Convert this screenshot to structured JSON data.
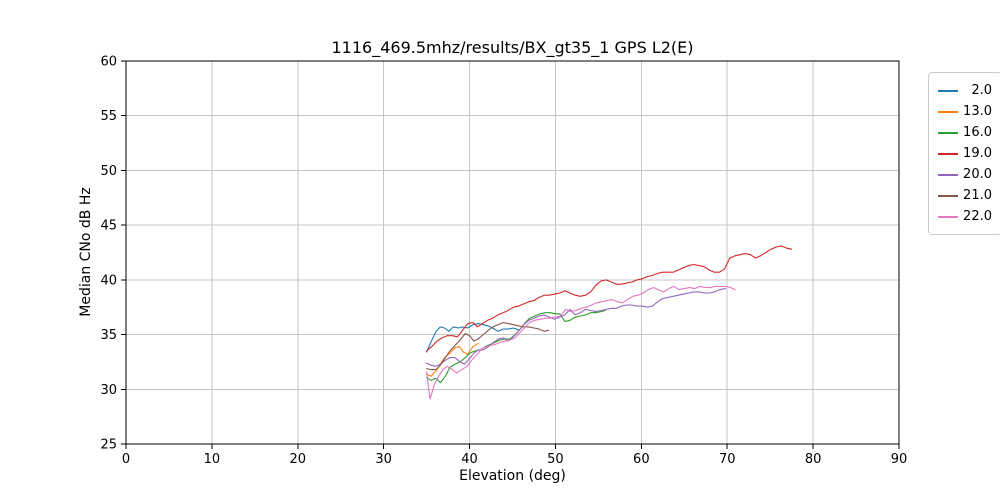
{
  "chart_data": {
    "type": "line",
    "title": "1116_469.5mhz/results/BX_gt35_1 GPS L2(E)",
    "xlabel": "Elevation (deg)",
    "ylabel": "Median CNo dB Hz",
    "xlim": [
      0,
      90
    ],
    "ylim": [
      25,
      60
    ],
    "xticks": [
      0,
      10,
      20,
      30,
      40,
      50,
      60,
      70,
      80,
      90
    ],
    "yticks": [
      25,
      30,
      35,
      40,
      45,
      50,
      55,
      60
    ],
    "grid": true,
    "grid_color": "#c6c6c6",
    "axis_color": "#000000",
    "legend_position": "outside-top-right",
    "series": [
      {
        "name": "2.0",
        "color": "#1f77b4",
        "points": [
          [
            35,
            33.4
          ],
          [
            35.5,
            34.3
          ],
          [
            36.1,
            35.3
          ],
          [
            36.6,
            35.7
          ],
          [
            37.1,
            35.6
          ],
          [
            37.6,
            35.3
          ],
          [
            38.1,
            35.7
          ],
          [
            38.7,
            35.6
          ],
          [
            39.2,
            35.7
          ],
          [
            39.8,
            35.6
          ],
          [
            40.4,
            35.9
          ],
          [
            41,
            36
          ],
          [
            41.6,
            35.9
          ],
          [
            42.1,
            35.8
          ],
          [
            42.7,
            35.6
          ],
          [
            43.3,
            35.3
          ],
          [
            43.9,
            35.5
          ],
          [
            44.5,
            35.5
          ],
          [
            45.1,
            35.6
          ],
          [
            45.8,
            35.4
          ]
        ]
      },
      {
        "name": "13.0",
        "color": "#ff7f0e",
        "points": [
          [
            35,
            31.4
          ],
          [
            35.5,
            31.2
          ],
          [
            36.1,
            31.7
          ],
          [
            36.6,
            32.3
          ],
          [
            37.1,
            32.9
          ],
          [
            37.7,
            33.3
          ],
          [
            38.3,
            33.8
          ],
          [
            38.8,
            33.9
          ],
          [
            39.3,
            33.4
          ],
          [
            39.8,
            33.2
          ],
          [
            40.4,
            33.9
          ],
          [
            41,
            34.2
          ]
        ]
      },
      {
        "name": "16.0",
        "color": "#2ca02c",
        "points": [
          [
            35,
            31.1
          ],
          [
            35.5,
            30.8
          ],
          [
            36.1,
            31
          ],
          [
            36.6,
            30.6
          ],
          [
            37.2,
            31.2
          ],
          [
            37.7,
            32
          ],
          [
            38.3,
            32.3
          ],
          [
            38.9,
            32.5
          ],
          [
            39.5,
            32.9
          ],
          [
            40,
            33.3
          ],
          [
            40.6,
            33.5
          ],
          [
            41.2,
            33.6
          ],
          [
            41.8,
            33.9
          ],
          [
            42.4,
            34.1
          ],
          [
            43,
            34.3
          ],
          [
            43.5,
            34.5
          ],
          [
            44.1,
            34.6
          ],
          [
            44.7,
            34.6
          ],
          [
            45.3,
            35
          ],
          [
            45.9,
            35.5
          ],
          [
            46.5,
            36.1
          ],
          [
            47,
            36.5
          ],
          [
            47.6,
            36.7
          ],
          [
            48.2,
            36.9
          ],
          [
            48.8,
            37
          ],
          [
            49.4,
            37
          ],
          [
            50,
            36.9
          ],
          [
            50.5,
            36.9
          ],
          [
            51.1,
            36.2
          ],
          [
            51.7,
            36.3
          ],
          [
            52.3,
            36.6
          ],
          [
            52.9,
            36.7
          ],
          [
            53.5,
            36.8
          ],
          [
            54.1,
            37
          ],
          [
            54.7,
            37
          ],
          [
            55.3,
            37.1
          ],
          [
            55.8,
            37.2
          ]
        ]
      },
      {
        "name": "19.0",
        "color": "#d62728",
        "points": [
          [
            35,
            33.5
          ],
          [
            35.6,
            33.9
          ],
          [
            36.2,
            34.4
          ],
          [
            36.8,
            34.7
          ],
          [
            37.4,
            34.9
          ],
          [
            38,
            34.9
          ],
          [
            38.6,
            34.8
          ],
          [
            39.2,
            35.4
          ],
          [
            39.8,
            36
          ],
          [
            40.4,
            36.1
          ],
          [
            40.9,
            35.7
          ],
          [
            41.5,
            36
          ],
          [
            42.1,
            36.3
          ],
          [
            42.7,
            36.5
          ],
          [
            43.3,
            36.8
          ],
          [
            43.9,
            37
          ],
          [
            44.5,
            37.2
          ],
          [
            45.1,
            37.5
          ],
          [
            45.7,
            37.6
          ],
          [
            46.3,
            37.8
          ],
          [
            46.9,
            38
          ],
          [
            47.5,
            38.1
          ],
          [
            48.1,
            38.4
          ],
          [
            48.7,
            38.6
          ],
          [
            49.3,
            38.6
          ],
          [
            49.9,
            38.7
          ],
          [
            50.5,
            38.8
          ],
          [
            51.1,
            39
          ],
          [
            51.7,
            38.8
          ],
          [
            52.3,
            38.6
          ],
          [
            52.9,
            38.5
          ],
          [
            53.5,
            38.6
          ],
          [
            54.1,
            38.9
          ],
          [
            54.7,
            39.5
          ],
          [
            55.3,
            39.9
          ],
          [
            55.9,
            40
          ],
          [
            56.5,
            39.8
          ],
          [
            57.1,
            39.6
          ],
          [
            57.7,
            39.6
          ],
          [
            58.3,
            39.7
          ],
          [
            58.9,
            39.8
          ],
          [
            59.5,
            40
          ],
          [
            60.1,
            40.1
          ],
          [
            60.7,
            40.3
          ],
          [
            61.3,
            40.4
          ],
          [
            61.9,
            40.6
          ],
          [
            62.5,
            40.7
          ],
          [
            63.1,
            40.7
          ],
          [
            63.7,
            40.7
          ],
          [
            64.3,
            40.9
          ],
          [
            64.9,
            41.1
          ],
          [
            65.5,
            41.3
          ],
          [
            66.1,
            41.4
          ],
          [
            66.7,
            41.3
          ],
          [
            67.3,
            41.2
          ],
          [
            67.9,
            40.9
          ],
          [
            68.5,
            40.7
          ],
          [
            69.1,
            40.7
          ],
          [
            69.7,
            41
          ],
          [
            70.3,
            42
          ],
          [
            70.9,
            42.2
          ],
          [
            71.5,
            42.3
          ],
          [
            72.1,
            42.4
          ],
          [
            72.7,
            42.3
          ],
          [
            73.3,
            42
          ],
          [
            73.9,
            42.2
          ],
          [
            74.5,
            42.5
          ],
          [
            75.1,
            42.8
          ],
          [
            75.7,
            43
          ],
          [
            76.3,
            43.1
          ],
          [
            76.9,
            42.9
          ],
          [
            77.5,
            42.8
          ]
        ]
      },
      {
        "name": "20.0",
        "color": "#9467bd",
        "points": [
          [
            35,
            32.4
          ],
          [
            35.5,
            32.2
          ],
          [
            36.1,
            32.1
          ],
          [
            36.6,
            32.3
          ],
          [
            37.1,
            32.6
          ],
          [
            37.7,
            32.9
          ],
          [
            38.3,
            32.9
          ],
          [
            38.9,
            32.5
          ],
          [
            39.4,
            32.3
          ],
          [
            40,
            32.8
          ],
          [
            40.5,
            33.3
          ],
          [
            41,
            33.6
          ],
          [
            41.6,
            33.6
          ],
          [
            42.2,
            33.9
          ],
          [
            42.8,
            34.3
          ],
          [
            43.4,
            34.6
          ],
          [
            43.9,
            34.7
          ],
          [
            44.5,
            34.4
          ],
          [
            45.1,
            34.8
          ],
          [
            45.7,
            35.3
          ],
          [
            46.3,
            35.9
          ],
          [
            46.9,
            36.3
          ],
          [
            47.5,
            36.5
          ],
          [
            48.1,
            36.7
          ],
          [
            48.7,
            36.8
          ],
          [
            49.3,
            36.6
          ],
          [
            49.9,
            36.4
          ],
          [
            50.5,
            36.6
          ],
          [
            51.1,
            36.8
          ],
          [
            51.7,
            37.3
          ],
          [
            52.3,
            36.8
          ],
          [
            52.9,
            37
          ],
          [
            53.5,
            37.3
          ],
          [
            54.1,
            37.2
          ],
          [
            54.7,
            37.1
          ],
          [
            55.3,
            37.2
          ],
          [
            55.9,
            37.3
          ],
          [
            56.5,
            37.4
          ],
          [
            57.1,
            37.4
          ],
          [
            57.7,
            37.6
          ],
          [
            58.3,
            37.7
          ],
          [
            58.9,
            37.7
          ],
          [
            59.5,
            37.6
          ],
          [
            60.1,
            37.6
          ],
          [
            60.7,
            37.5
          ],
          [
            61.3,
            37.6
          ],
          [
            61.9,
            38
          ],
          [
            62.5,
            38.3
          ],
          [
            63.1,
            38.4
          ],
          [
            63.7,
            38.5
          ],
          [
            64.3,
            38.6
          ],
          [
            64.9,
            38.7
          ],
          [
            65.5,
            38.8
          ],
          [
            66.1,
            38.9
          ],
          [
            66.7,
            38.9
          ],
          [
            67.3,
            38.8
          ],
          [
            67.9,
            38.8
          ],
          [
            68.5,
            38.9
          ],
          [
            69.1,
            39.1
          ],
          [
            69.8,
            39.2
          ]
        ]
      },
      {
        "name": "21.0",
        "color": "#8c564b",
        "points": [
          [
            35,
            31.9
          ],
          [
            35.5,
            31.8
          ],
          [
            36.1,
            31.8
          ],
          [
            36.6,
            32.2
          ],
          [
            37.2,
            32.9
          ],
          [
            37.7,
            33.5
          ],
          [
            38.3,
            34
          ],
          [
            38.9,
            34.5
          ],
          [
            39.5,
            35.1
          ],
          [
            40,
            34.9
          ],
          [
            40.5,
            34.4
          ],
          [
            41,
            34.6
          ],
          [
            41.6,
            35
          ],
          [
            42.2,
            35.4
          ],
          [
            42.7,
            35.7
          ],
          [
            43.3,
            35.9
          ],
          [
            43.9,
            36.1
          ],
          [
            44.5,
            36
          ],
          [
            45.1,
            35.9
          ],
          [
            45.7,
            35.8
          ],
          [
            46.3,
            35.7
          ],
          [
            46.9,
            35.7
          ],
          [
            47.5,
            35.6
          ],
          [
            48.1,
            35.5
          ],
          [
            48.7,
            35.3
          ],
          [
            49.2,
            35.4
          ]
        ]
      },
      {
        "name": "22.0",
        "color": "#e377c2",
        "points": [
          [
            35,
            31.6
          ],
          [
            35.4,
            29.1
          ],
          [
            35.9,
            30.4
          ],
          [
            36.4,
            31.2
          ],
          [
            36.9,
            31.8
          ],
          [
            37.4,
            32.1
          ],
          [
            38,
            31.8
          ],
          [
            38.5,
            31.5
          ],
          [
            39.1,
            31.8
          ],
          [
            39.7,
            32.1
          ],
          [
            40.3,
            32.7
          ],
          [
            40.9,
            33.2
          ],
          [
            41.4,
            33.7
          ],
          [
            41.9,
            33.9
          ],
          [
            42.4,
            34
          ],
          [
            43,
            34.1
          ],
          [
            43.6,
            34.3
          ],
          [
            44.1,
            34.4
          ],
          [
            44.7,
            34.5
          ],
          [
            45.3,
            34.7
          ],
          [
            45.9,
            35.2
          ],
          [
            46.5,
            35.7
          ],
          [
            47,
            36.1
          ],
          [
            47.6,
            36.3
          ],
          [
            48.2,
            36.4
          ],
          [
            48.8,
            36.5
          ],
          [
            49.4,
            36.5
          ],
          [
            50,
            36.6
          ],
          [
            50.6,
            36.7
          ],
          [
            51.2,
            37.3
          ],
          [
            51.8,
            37.1
          ],
          [
            52.4,
            37.2
          ],
          [
            53,
            37.4
          ],
          [
            53.6,
            37.5
          ],
          [
            54.2,
            37.7
          ],
          [
            54.8,
            37.9
          ],
          [
            55.4,
            38
          ],
          [
            56,
            38.1
          ],
          [
            56.6,
            38.2
          ],
          [
            57.2,
            38
          ],
          [
            57.8,
            37.9
          ],
          [
            58.4,
            38.2
          ],
          [
            59,
            38.5
          ],
          [
            59.6,
            38.6
          ],
          [
            60.2,
            38.8
          ],
          [
            60.8,
            39.1
          ],
          [
            61.4,
            39.3
          ],
          [
            62,
            39.1
          ],
          [
            62.6,
            38.9
          ],
          [
            63.2,
            39.2
          ],
          [
            63.8,
            39.4
          ],
          [
            64.4,
            39.1
          ],
          [
            65,
            39.2
          ],
          [
            65.6,
            39.3
          ],
          [
            66.2,
            39.2
          ],
          [
            66.8,
            39.4
          ],
          [
            67.4,
            39.3
          ],
          [
            68,
            39.3
          ],
          [
            68.6,
            39.4
          ],
          [
            69.2,
            39.4
          ],
          [
            69.8,
            39.4
          ],
          [
            70.4,
            39.3
          ],
          [
            70.9,
            39.1
          ]
        ]
      }
    ]
  }
}
